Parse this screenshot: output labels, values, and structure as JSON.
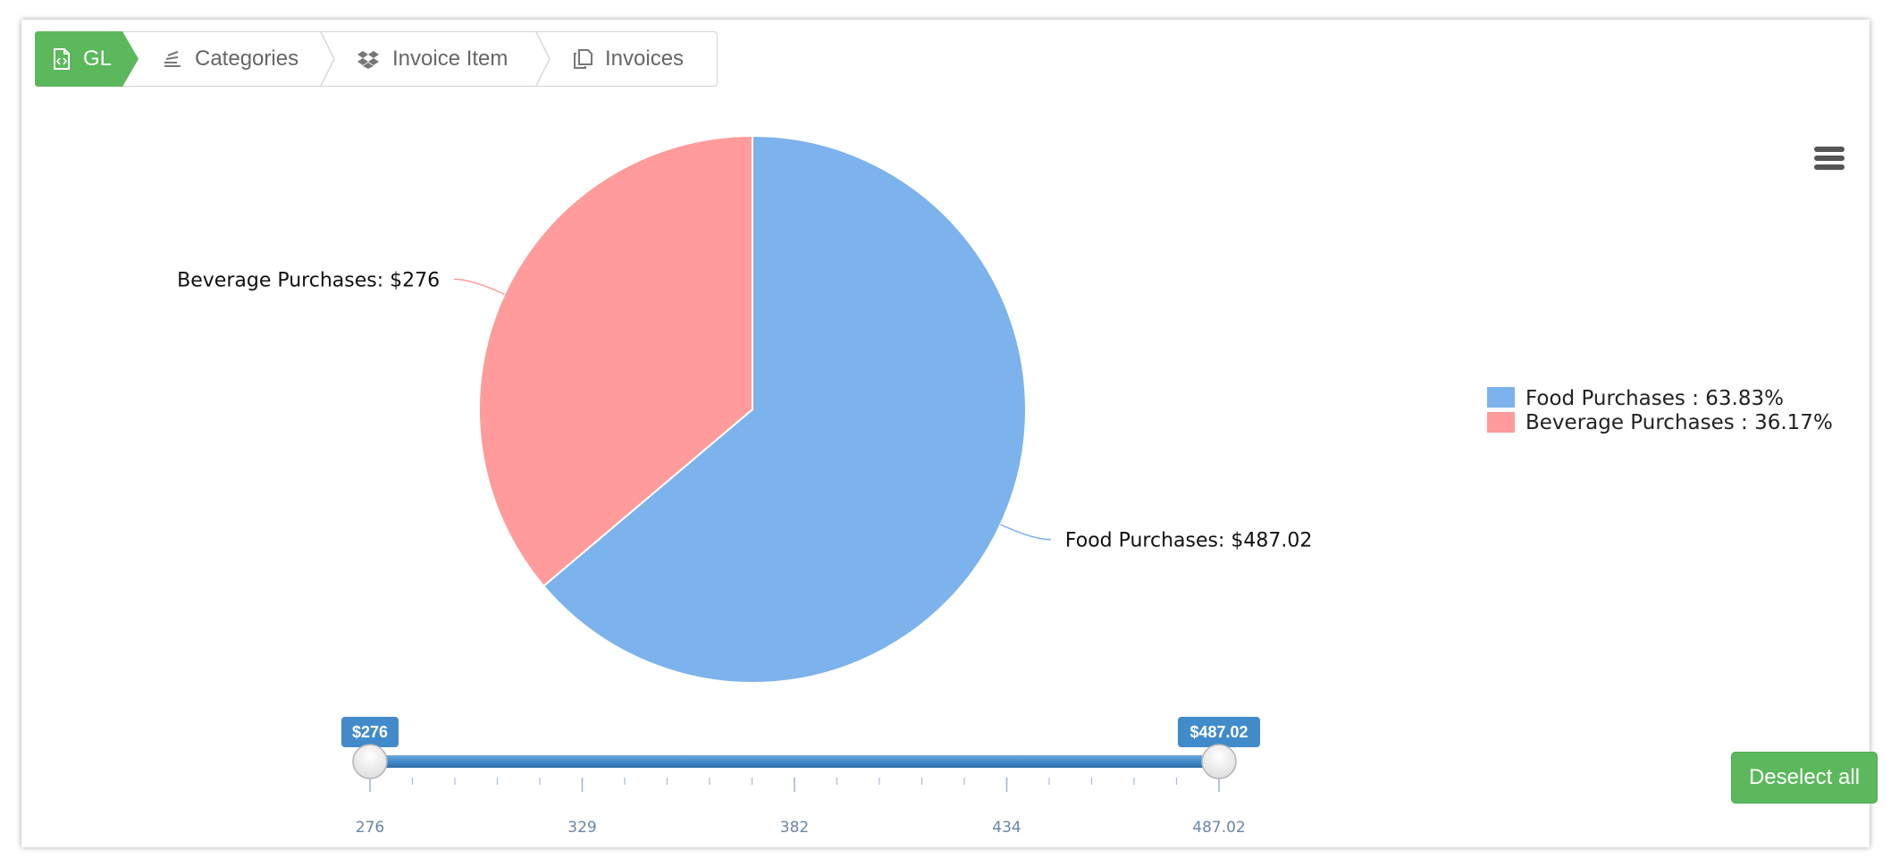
{
  "breadcrumb": {
    "items": [
      {
        "label": "GL",
        "icon": "file-code-icon",
        "active": true
      },
      {
        "label": "Categories",
        "icon": "stack-icon",
        "active": false
      },
      {
        "label": "Invoice Item",
        "icon": "dropbox-icon",
        "active": false
      },
      {
        "label": "Invoices",
        "icon": "copy-icon",
        "active": false
      }
    ]
  },
  "chart_data": {
    "type": "pie",
    "slices": [
      {
        "name": "Food Purchases",
        "value": 487.02,
        "label": "Food Purchases: $487.02",
        "legend": "Food Purchases : 63.83%",
        "color": "#7cb3ec"
      },
      {
        "name": "Beverage Purchases",
        "value": 276,
        "label": "Beverage Purchases: $276",
        "legend": "Beverage Purchases : 36.17%",
        "color": "#ff9b9b"
      }
    ],
    "legend_position": "right"
  },
  "range_slider": {
    "min": 276,
    "max": 487.02,
    "from": 276,
    "to": 487.02,
    "from_label": "$276",
    "to_label": "$487.02",
    "ticks": [
      "276",
      "329",
      "382",
      "434",
      "487.02"
    ],
    "color": "#428bca"
  },
  "actions": {
    "deselect_all_label": "Deselect all",
    "menu_icon": "hamburger-menu-icon"
  },
  "colors": {
    "active_crumb": "#5cb85c"
  }
}
